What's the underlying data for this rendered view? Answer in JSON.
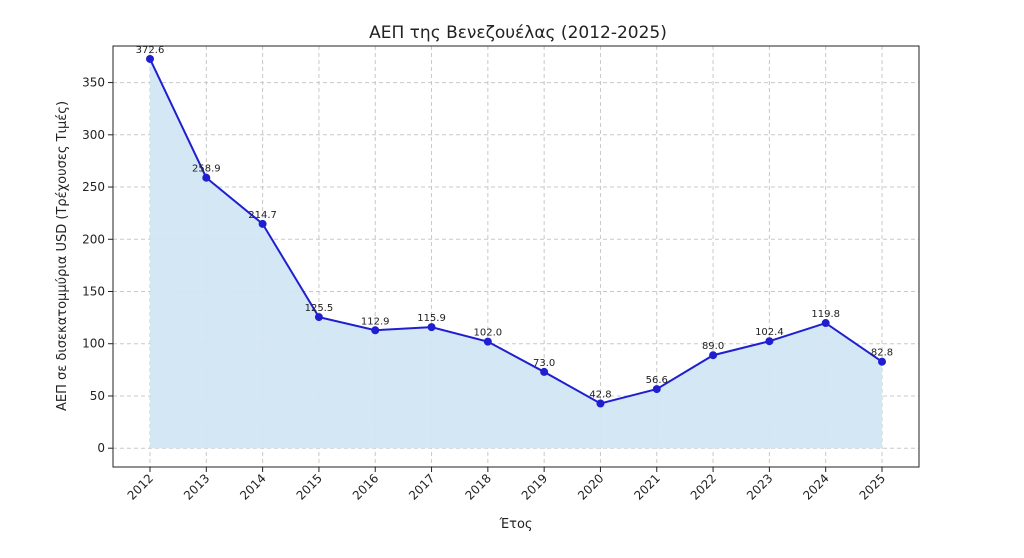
{
  "chart_data": {
    "type": "line",
    "title": "ΑΕΠ της Βενεζουέλας (2012-2025)",
    "xlabel": "Έτος",
    "ylabel": "ΑΕΠ σε δισεκατομμύρια USD (Τρέχουσες Τιμές)",
    "x": [
      "2012",
      "2013",
      "2014",
      "2015",
      "2016",
      "2017",
      "2018",
      "2019",
      "2020",
      "2021",
      "2022",
      "2023",
      "2024",
      "2025"
    ],
    "values": [
      372.6,
      258.9,
      214.7,
      125.5,
      112.9,
      115.9,
      102.0,
      73.0,
      42.8,
      56.6,
      89.0,
      102.4,
      119.8,
      82.8
    ],
    "value_labels": [
      "372.6",
      "258.9",
      "214.7",
      "125.5",
      "112.9",
      "115.9",
      "102.0",
      "73.0",
      "42.8",
      "56.6",
      "89.0",
      "102.4",
      "119.8",
      "82.8"
    ],
    "yticks": [
      0,
      50,
      100,
      150,
      200,
      250,
      300,
      350
    ],
    "ylim": [
      -18,
      385
    ],
    "grid": true,
    "area_fill": true,
    "colors": {
      "line": "#1f1fd0",
      "marker": "#1f1fd0",
      "fill": "#d2e6f4"
    }
  }
}
